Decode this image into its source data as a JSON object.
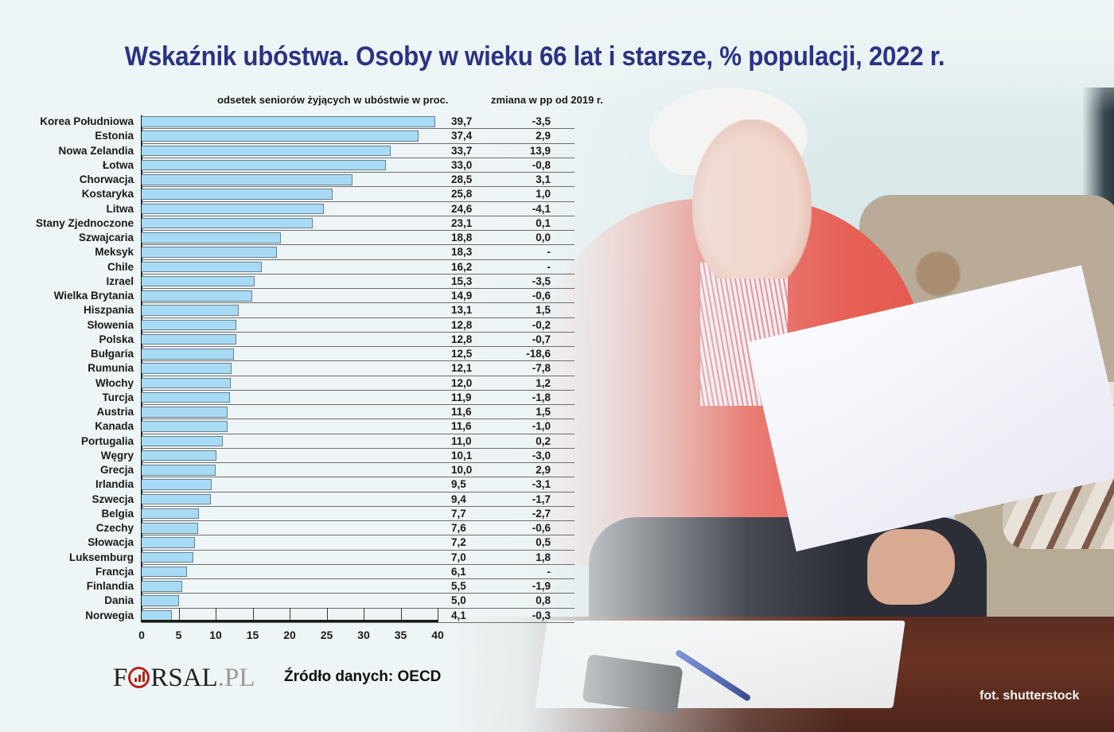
{
  "title": "Wskaźnik ubóstwa. Osoby w wieku 66 lat i starsze, % populacji, 2022 r.",
  "columns": {
    "value_header": "odsetek seniorów żyjących w ubóstwie w proc.",
    "change_header": "zmiana  w pp od  2019 r."
  },
  "rows": [
    {
      "country": "Korea Południowa",
      "value": "39,7",
      "change": "-3,5"
    },
    {
      "country": "Estonia",
      "value": "37,4",
      "change": "2,9"
    },
    {
      "country": "Nowa Zelandia",
      "value": "33,7",
      "change": "13,9"
    },
    {
      "country": "Łotwa",
      "value": "33,0",
      "change": "-0,8"
    },
    {
      "country": "Chorwacja",
      "value": "28,5",
      "change": "3,1"
    },
    {
      "country": "Kostaryka",
      "value": "25,8",
      "change": "1,0"
    },
    {
      "country": "Litwa",
      "value": "24,6",
      "change": "-4,1"
    },
    {
      "country": "Stany Zjednoczone",
      "value": "23,1",
      "change": "0,1"
    },
    {
      "country": "Szwajcaria",
      "value": "18,8",
      "change": "0,0"
    },
    {
      "country": "Meksyk",
      "value": "18,3",
      "change": "-"
    },
    {
      "country": "Chile",
      "value": "16,2",
      "change": "-"
    },
    {
      "country": "Izrael",
      "value": "15,3",
      "change": "-3,5"
    },
    {
      "country": "Wielka Brytania",
      "value": "14,9",
      "change": "-0,6"
    },
    {
      "country": "Hiszpania",
      "value": "13,1",
      "change": "1,5"
    },
    {
      "country": "Słowenia",
      "value": "12,8",
      "change": "-0,2"
    },
    {
      "country": "Polska",
      "value": "12,8",
      "change": "-0,7"
    },
    {
      "country": "Bułgaria",
      "value": "12,5",
      "change": "-18,6"
    },
    {
      "country": "Rumunia",
      "value": "12,1",
      "change": "-7,8"
    },
    {
      "country": "Włochy",
      "value": "12,0",
      "change": "1,2"
    },
    {
      "country": "Turcja",
      "value": "11,9",
      "change": "-1,8"
    },
    {
      "country": "Austria",
      "value": "11,6",
      "change": "1,5"
    },
    {
      "country": "Kanada",
      "value": "11,6",
      "change": "-1,0"
    },
    {
      "country": "Portugalia",
      "value": "11,0",
      "change": "0,2"
    },
    {
      "country": "Węgry",
      "value": "10,1",
      "change": "-3,0"
    },
    {
      "country": "Grecja",
      "value": "10,0",
      "change": "2,9"
    },
    {
      "country": "Irlandia",
      "value": "9,5",
      "change": "-3,1"
    },
    {
      "country": "Szwecja",
      "value": "9,4",
      "change": "-1,7"
    },
    {
      "country": "Belgia",
      "value": "7,7",
      "change": "-2,7"
    },
    {
      "country": "Czechy",
      "value": "7,6",
      "change": "-0,6"
    },
    {
      "country": "Słowacja",
      "value": "7,2",
      "change": "0,5"
    },
    {
      "country": "Luksemburg",
      "value": "7,0",
      "change": "1,8"
    },
    {
      "country": "Francja",
      "value": "6,1",
      "change": "-"
    },
    {
      "country": "Finlandia",
      "value": "5,5",
      "change": "-1,9"
    },
    {
      "country": "Dania",
      "value": "5,0",
      "change": "0,8"
    },
    {
      "country": "Norwegia",
      "value": "4,1",
      "change": "-0,3"
    }
  ],
  "x_ticks": [
    "0",
    "5",
    "10",
    "15",
    "20",
    "25",
    "30",
    "35",
    "40"
  ],
  "footer": {
    "logo_main": "F",
    "logo_rest": "RSAL",
    "logo_suffix": ".PL",
    "source": "Źródło danych: OECD",
    "credit": "fot. shutterstock"
  },
  "colors": {
    "title": "#2b3383",
    "bar": "#a7dbf5",
    "logo_accent": "#b4231d"
  },
  "chart_data": {
    "type": "bar",
    "orientation": "horizontal",
    "title": "Wskaźnik ubóstwa. Osoby w wieku 66 lat i starsze, % populacji, 2022 r.",
    "xlabel": "",
    "ylabel": "",
    "xlim": [
      0,
      40
    ],
    "x_ticks": [
      0,
      5,
      10,
      15,
      20,
      25,
      30,
      35,
      40
    ],
    "grid": true,
    "categories": [
      "Korea Południowa",
      "Estonia",
      "Nowa Zelandia",
      "Łotwa",
      "Chorwacja",
      "Kostaryka",
      "Litwa",
      "Stany Zjednoczone",
      "Szwajcaria",
      "Meksyk",
      "Chile",
      "Izrael",
      "Wielka Brytania",
      "Hiszpania",
      "Słowenia",
      "Polska",
      "Bułgaria",
      "Rumunia",
      "Włochy",
      "Turcja",
      "Austria",
      "Kanada",
      "Portugalia",
      "Węgry",
      "Grecja",
      "Irlandia",
      "Szwecja",
      "Belgia",
      "Czechy",
      "Słowacja",
      "Luksemburg",
      "Francja",
      "Finlandia",
      "Dania",
      "Norwegia"
    ],
    "series": [
      {
        "name": "odsetek seniorów żyjących w ubóstwie w proc.",
        "values": [
          39.7,
          37.4,
          33.7,
          33.0,
          28.5,
          25.8,
          24.6,
          23.1,
          18.8,
          18.3,
          16.2,
          15.3,
          14.9,
          13.1,
          12.8,
          12.8,
          12.5,
          12.1,
          12.0,
          11.9,
          11.6,
          11.6,
          11.0,
          10.1,
          10.0,
          9.5,
          9.4,
          7.7,
          7.6,
          7.2,
          7.0,
          6.1,
          5.5,
          5.0,
          4.1
        ]
      },
      {
        "name": "zmiana w pp od 2019 r.",
        "values": [
          -3.5,
          2.9,
          13.9,
          -0.8,
          3.1,
          1.0,
          -4.1,
          0.1,
          0.0,
          null,
          null,
          -3.5,
          -0.6,
          1.5,
          -0.2,
          -0.7,
          -18.6,
          -7.8,
          1.2,
          -1.8,
          1.5,
          -1.0,
          0.2,
          -3.0,
          2.9,
          -3.1,
          -1.7,
          -2.7,
          -0.6,
          0.5,
          1.8,
          null,
          -1.9,
          0.8,
          -0.3
        ]
      }
    ],
    "annotations": [
      "Źródło danych: OECD",
      "fot. shutterstock"
    ]
  }
}
